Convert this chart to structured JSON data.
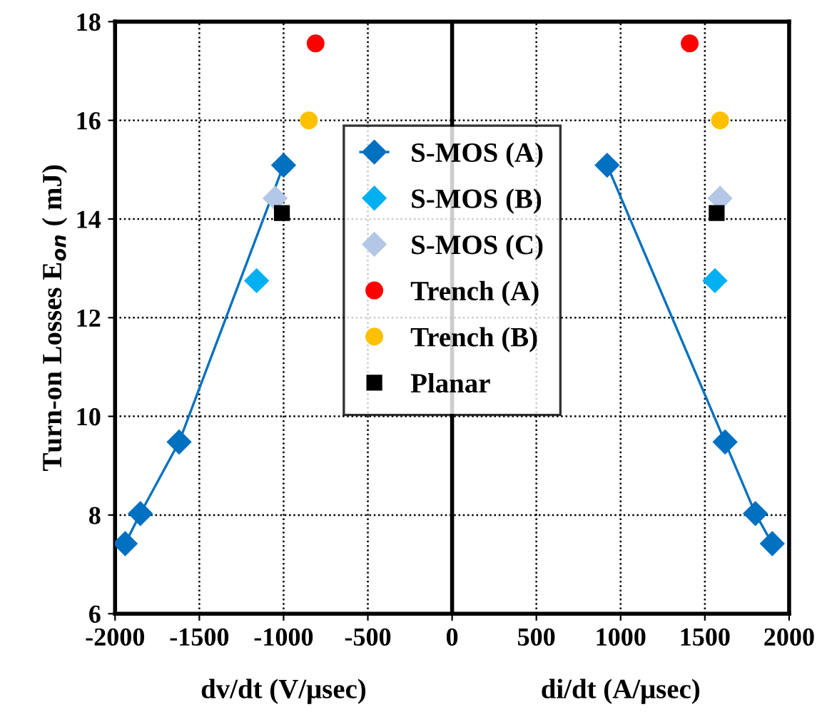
{
  "chart_data": {
    "type": "scatter",
    "ylabel": "Turn-on Losses E$_{on}$ ( mJ)",
    "xlabel": "dv/dt (V/μsec)",
    "annotations": [
      "di/dt (A/μsec)"
    ],
    "xlim": [
      -2000,
      2000
    ],
    "xticks": [
      -2000,
      -1500,
      -1000,
      -500,
      0,
      500,
      1000,
      1500,
      2000
    ],
    "ylim": [
      6,
      18
    ],
    "yticks": [
      6,
      8,
      10,
      12,
      14,
      16,
      18
    ],
    "grid": true,
    "legend": "center",
    "ref_lines": [
      {
        "axis": "x",
        "value": 0,
        "color": "#000000",
        "line_style": "solid"
      }
    ],
    "series": [
      {
        "name": "S-MOS (A)",
        "type": "line",
        "marker": "diamond",
        "color": "#0070c0",
        "x": [
          -1940,
          -1850,
          -1620,
          -1000,
          0,
          920,
          1620,
          1800,
          1900
        ],
        "values": [
          7.42,
          8.03,
          9.48,
          15.09,
          null,
          15.09,
          9.48,
          8.03,
          7.42
        ]
      },
      {
        "name": "S-MOS (B)",
        "marker": "diamond",
        "color": "#00b0f0",
        "x": [
          -1160,
          1560
        ],
        "values": [
          12.75,
          12.75
        ]
      },
      {
        "name": "S-MOS (C)",
        "marker": "diamond",
        "color": "#b4c7e7",
        "x": [
          -1050,
          1590
        ],
        "values": [
          14.42,
          14.42
        ]
      },
      {
        "name": "Trench (A)",
        "marker": "circle",
        "color": "#ff0000",
        "x": [
          -810,
          1410
        ],
        "values": [
          17.56,
          17.56
        ]
      },
      {
        "name": "Trench (B)",
        "marker": "circle",
        "color": "#ffc000",
        "x": [
          -850,
          1590
        ],
        "values": [
          16.0,
          16.0
        ]
      },
      {
        "name": "Planar",
        "marker": "square",
        "color": "#000000",
        "x": [
          -1010,
          1570
        ],
        "values": [
          14.12,
          14.12
        ]
      }
    ]
  }
}
